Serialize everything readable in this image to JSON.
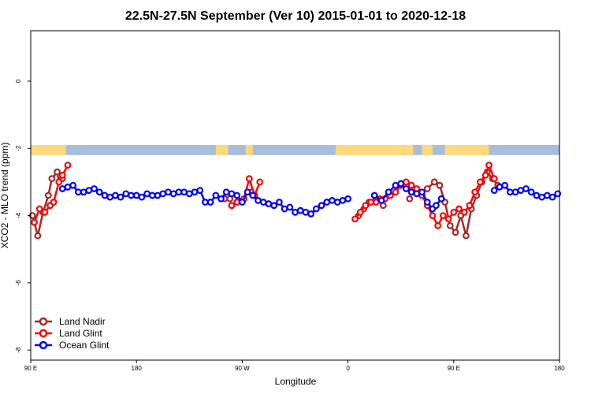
{
  "chart_data": {
    "type": "line",
    "title": "22.5N-27.5N September (Ver 10)   2015-01-01 to 2020-12-18",
    "xlabel": "Longitude",
    "ylabel": "XCO2 - MLO trend (ppm)",
    "xlim": [
      90,
      390
    ],
    "ylim": [
      -8.3,
      1.5
    ],
    "x_ticks": [
      {
        "value": 90,
        "label": "90 E"
      },
      {
        "value": 150,
        "label": "180"
      },
      {
        "value": 210,
        "label": "90 W"
      },
      {
        "value": 270,
        "label": "0"
      },
      {
        "value": 330,
        "label": "90 E"
      },
      {
        "value": 390,
        "label": "180"
      }
    ],
    "y_ticks": [
      0,
      -2,
      -4,
      -6,
      -8
    ],
    "grid": false,
    "legend_position": "bottom-left",
    "land_mask_band": {
      "y_range": [
        -2.2,
        -1.9
      ],
      "ocean_color": "#a6bddb",
      "land_color": "#fdd97c"
    },
    "land_spans": [
      [
        90,
        110
      ],
      [
        195,
        202
      ],
      [
        212,
        216
      ],
      [
        263,
        307
      ],
      [
        312,
        318
      ],
      [
        325,
        350
      ]
    ],
    "series": [
      {
        "name": "Land Nadir",
        "color": "#a52a2a",
        "x": [
          91,
          94,
          97,
          100,
          102,
          105,
          106,
          108,
          200,
          203,
          215,
          276,
          279,
          282,
          286,
          290,
          305,
          315,
          319,
          322,
          325,
          328,
          331,
          334,
          337,
          340,
          343,
          346,
          349,
          352,
          355
        ],
        "y": [
          -4.0,
          -4.6,
          -3.9,
          -3.4,
          -2.9,
          -2.7,
          -3.0,
          -2.9,
          -3.5,
          -3.5,
          -3.3,
          -4.0,
          -3.8,
          -3.6,
          -3.5,
          -3.7,
          -3.5,
          -3.2,
          -3.0,
          -3.1,
          -3.6,
          -4.3,
          -4.5,
          -4.0,
          -4.6,
          -3.8,
          -3.4,
          -3.0,
          -2.7,
          -2.9,
          -3.1
        ]
      },
      {
        "name": "Land Glint",
        "color": "#ff0000",
        "x": [
          92,
          95,
          98,
          101,
          103,
          106,
          108,
          111,
          204,
          207,
          211,
          214,
          217,
          220,
          274,
          277,
          280,
          283,
          286,
          288,
          291,
          294,
          297,
          300,
          303,
          306,
          309,
          312,
          315,
          318,
          321,
          324,
          327,
          330,
          333,
          336,
          339,
          342,
          345,
          348,
          350,
          353
        ],
        "y": [
          -4.2,
          -3.8,
          -3.9,
          -3.7,
          -3.6,
          -3.0,
          -2.8,
          -2.5,
          -3.7,
          -3.6,
          -3.5,
          -2.9,
          -3.4,
          -3.0,
          -4.1,
          -3.9,
          -3.7,
          -3.6,
          -3.6,
          -3.5,
          -3.5,
          -3.4,
          -3.3,
          -3.1,
          -3.0,
          -3.1,
          -3.2,
          -3.4,
          -3.7,
          -4.0,
          -4.3,
          -4.0,
          -4.1,
          -3.9,
          -3.8,
          -3.9,
          -3.7,
          -3.3,
          -3.0,
          -2.8,
          -2.5,
          -2.9
        ]
      },
      {
        "name": "Ocean Glint",
        "color": "#0000ff",
        "x": [
          108,
          111,
          114,
          117,
          120,
          123,
          126,
          129,
          132,
          135,
          138,
          141,
          144,
          147,
          150,
          153,
          156,
          159,
          162,
          165,
          168,
          171,
          174,
          177,
          180,
          183,
          186,
          189,
          192,
          195,
          198,
          201,
          204,
          207,
          210,
          213,
          216,
          219,
          222,
          225,
          228,
          231,
          234,
          237,
          240,
          243,
          246,
          249,
          252,
          255,
          258,
          261,
          264,
          267,
          270,
          285,
          289,
          293,
          297,
          300,
          303,
          306,
          309,
          312,
          315,
          318,
          320,
          323,
          353,
          356,
          359,
          362,
          365,
          368,
          371,
          374,
          377,
          380,
          383,
          386,
          389
        ],
        "y": [
          -3.2,
          -3.15,
          -3.1,
          -3.3,
          -3.3,
          -3.25,
          -3.2,
          -3.3,
          -3.4,
          -3.45,
          -3.4,
          -3.45,
          -3.35,
          -3.4,
          -3.4,
          -3.45,
          -3.35,
          -3.4,
          -3.4,
          -3.35,
          -3.3,
          -3.35,
          -3.3,
          -3.3,
          -3.35,
          -3.3,
          -3.25,
          -3.6,
          -3.6,
          -3.4,
          -3.5,
          -3.3,
          -3.35,
          -3.4,
          -3.6,
          -3.3,
          -3.4,
          -3.55,
          -3.6,
          -3.65,
          -3.7,
          -3.6,
          -3.8,
          -3.75,
          -3.9,
          -3.85,
          -3.9,
          -3.95,
          -3.8,
          -3.7,
          -3.6,
          -3.55,
          -3.6,
          -3.55,
          -3.5,
          -3.4,
          -3.55,
          -3.3,
          -3.1,
          -3.05,
          -3.2,
          -3.3,
          -3.35,
          -3.3,
          -3.6,
          -3.8,
          -3.7,
          -3.5,
          -3.25,
          -3.15,
          -3.1,
          -3.3,
          -3.3,
          -3.25,
          -3.2,
          -3.3,
          -3.4,
          -3.45,
          -3.4,
          -3.45,
          -3.35
        ]
      }
    ]
  }
}
